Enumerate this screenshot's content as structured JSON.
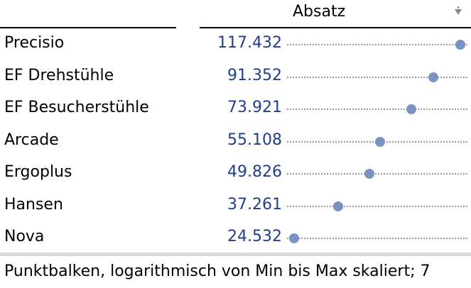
{
  "chart_data": {
    "type": "scatter",
    "measure_title": "Absatz",
    "categories": [
      "Precisio",
      "EF Drehstühle",
      "EF Besucherstühle",
      "Arcade",
      "Ergoplus",
      "Hansen",
      "Nova"
    ],
    "values_text": [
      "117.432",
      "91.352",
      "73.921",
      "55.108",
      "49.826",
      "37.261",
      "24.532"
    ],
    "values": [
      117432,
      91352,
      73921,
      55108,
      49826,
      37261,
      24532
    ],
    "scale": "log",
    "xlim": [
      24532,
      117432
    ],
    "grid": false,
    "legend": "none",
    "marker_color": "#7b93c3",
    "value_color": "#1f3e8c"
  },
  "footer": {
    "note": "Punktbalken, logarithmisch von Min bis Max skaliert; 7"
  },
  "icons": {
    "sort": "sort-descending-icon"
  }
}
